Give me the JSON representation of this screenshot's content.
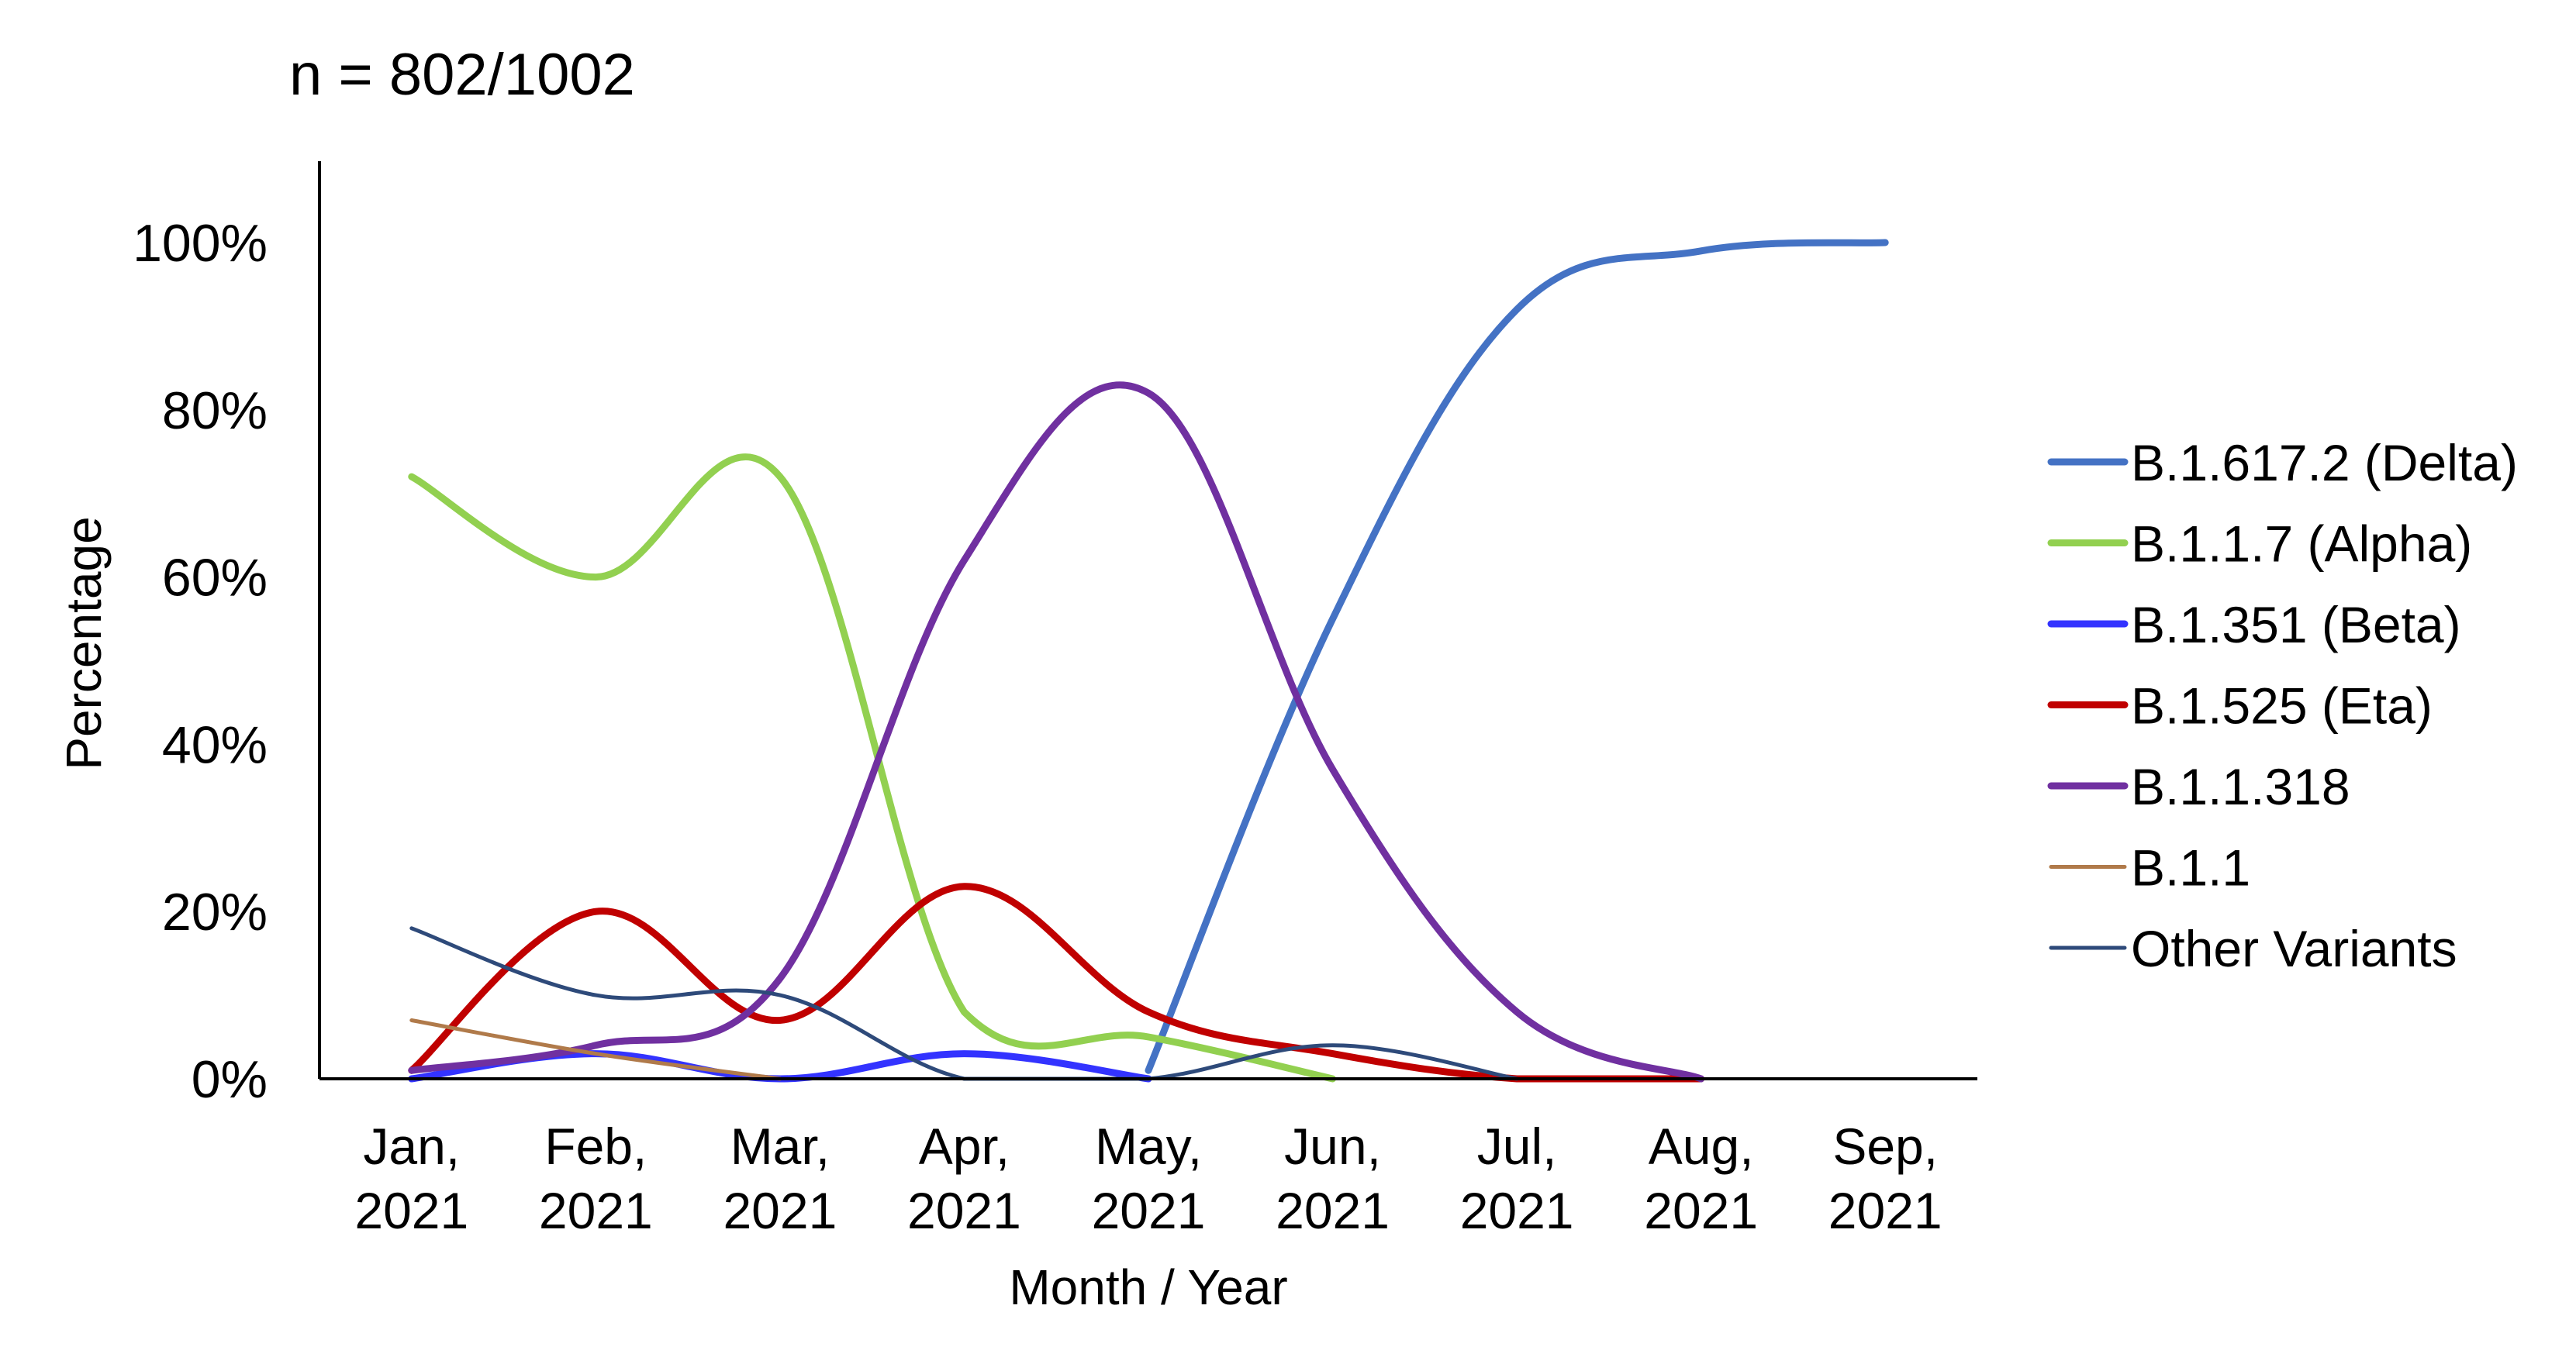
{
  "chart_data": {
    "type": "line",
    "title": "n = 802/1002",
    "xlabel": "Month / Year",
    "ylabel": "Percentage",
    "categories": [
      [
        "Jan,",
        "2021"
      ],
      [
        "Feb,",
        "2021"
      ],
      [
        "Mar,",
        "2021"
      ],
      [
        "Apr,",
        "2021"
      ],
      [
        "May,",
        "2021"
      ],
      [
        "Jun,",
        "2021"
      ],
      [
        "Jul,",
        "2021"
      ],
      [
        "Aug,",
        "2021"
      ],
      [
        "Sep,",
        "2021"
      ]
    ],
    "ylim": [
      0,
      110
    ],
    "yticks": [
      0,
      20,
      40,
      60,
      80,
      100
    ],
    "ytick_labels": [
      "0%",
      "20%",
      "40%",
      "60%",
      "80%",
      "100%"
    ],
    "grid": false,
    "legend_position": "right",
    "series": [
      {
        "name": "B.1.617.2 (Delta)",
        "color": "#4472C4",
        "width": "thick",
        "values": [
          null,
          null,
          null,
          null,
          1,
          55,
          92,
          99,
          100
        ]
      },
      {
        "name": "B.1.1.7 (Alpha)",
        "color": "#92D050",
        "width": "thick",
        "values": [
          72,
          60,
          72,
          8,
          5,
          0,
          null,
          null,
          null
        ]
      },
      {
        "name": "B.1.351 (Beta)",
        "color": "#3333FF",
        "width": "thick",
        "values": [
          0,
          3,
          0,
          3,
          0,
          null,
          null,
          null,
          null
        ]
      },
      {
        "name": "B.1.525 (Eta)",
        "color": "#C00000",
        "width": "thick",
        "values": [
          1,
          20,
          7,
          23,
          8,
          3,
          0,
          0,
          null
        ]
      },
      {
        "name": "B.1.1.318",
        "color": "#7030A0",
        "width": "thick",
        "values": [
          1,
          4,
          12,
          62,
          82,
          37,
          8,
          0,
          null
        ]
      },
      {
        "name": "B.1.1",
        "color": "#B07A4A",
        "width": "thin",
        "values": [
          7,
          3,
          0,
          null,
          null,
          null,
          null,
          null,
          null
        ]
      },
      {
        "name": "Other Variants",
        "color": "#2E4A7A",
        "width": "thin",
        "values": [
          18,
          10,
          10,
          0,
          0,
          4,
          0,
          null,
          null
        ]
      }
    ]
  }
}
